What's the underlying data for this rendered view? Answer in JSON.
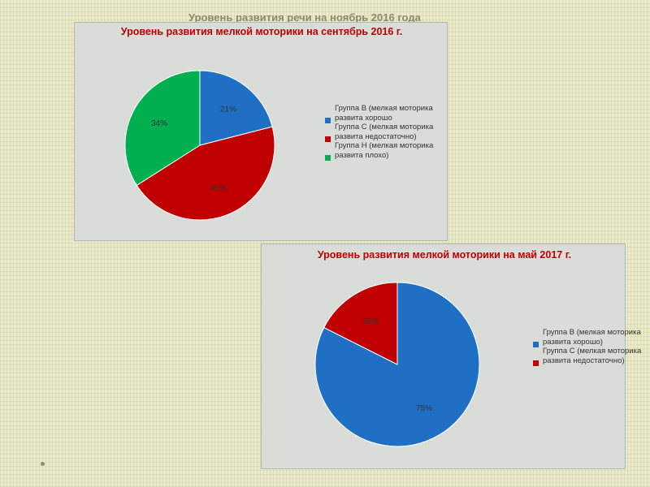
{
  "slide": {
    "title_behind": "Уровень развития речи на ноябрь 2016 года"
  },
  "chart_data": [
    {
      "type": "pie",
      "title": "Уровень развития мелкой моторики на сентябрь 2016 г.",
      "categories": [
        "Группа В (мелкая моторика развита хорошо",
        "Группа С (мелкая моторика развита недостаточно)",
        "Группа Н (мелкая моторика развита плохо)"
      ],
      "values": [
        21,
        45,
        34
      ],
      "labels": [
        "21%",
        "45%",
        "34%"
      ],
      "colors": [
        "#1f6fc5",
        "#c00000",
        "#00b050"
      ],
      "legend": "right"
    },
    {
      "type": "pie",
      "title": "Уровень развития мелкой моторики на май 2017 г.",
      "categories": [
        "Группа В (мелкая моторика развита хорошо)",
        "Группа С (мелкая моторика развита недостаточно)"
      ],
      "values": [
        75,
        16
      ],
      "labels": [
        "75%",
        "16%"
      ],
      "colors": [
        "#1f6fc5",
        "#c00000"
      ],
      "legend": "right"
    }
  ]
}
